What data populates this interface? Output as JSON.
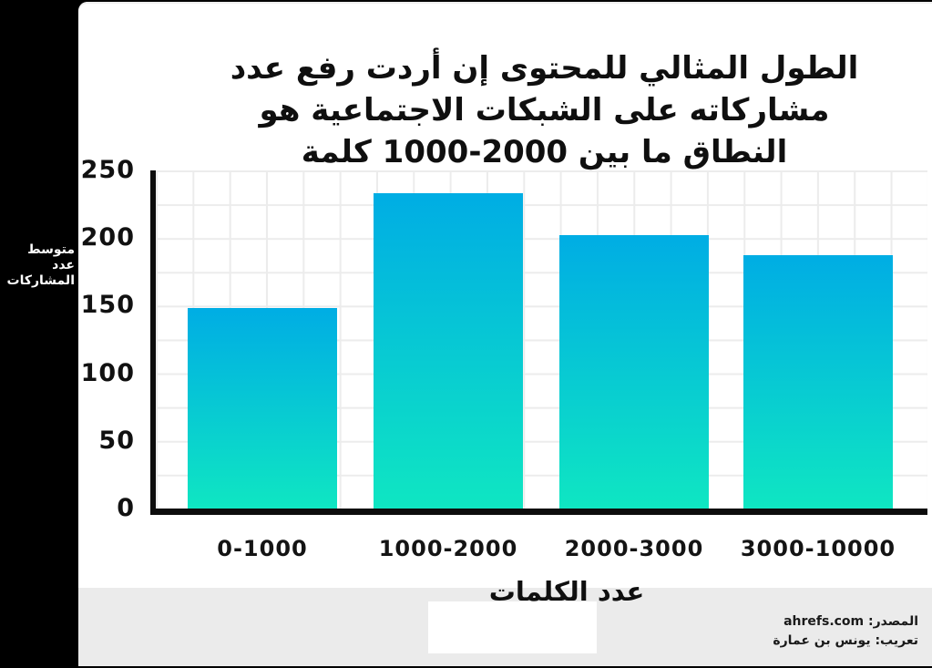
{
  "page": {
    "background_color": "#000000",
    "card_color": "#ffffff",
    "footer_band_color": "#ebebeb"
  },
  "title": {
    "lines": [
      "الطول المثالي للمحتوى إن أردت رفع عدد",
      "مشاركاته على الشبكات الاجتماعية هو",
      "النطاق ما بين 2000-1000 كلمة"
    ]
  },
  "chart_data": {
    "type": "bar",
    "categories": [
      "0-1000",
      "1000-2000",
      "2000-3000",
      "3000-10000"
    ],
    "values": [
      148,
      233,
      202,
      187
    ],
    "title": "الطول المثالي للمحتوى إن أردت رفع عدد مشاركاته على الشبكات الاجتماعية هو النطاق ما بين 1000-2000 كلمة",
    "xlabel": "عدد الكلمات",
    "ylabel": "متوسط عدد المشاركات",
    "ylim": [
      0,
      250
    ],
    "yticks": [
      250,
      200,
      150,
      100,
      50,
      0
    ],
    "grid": true,
    "legend": null,
    "bar_gradient_top": "#00ade4",
    "bar_gradient_bottom": "#0fe6c2",
    "axis_color": "#0d0d0d",
    "grid_color": "#ececec"
  },
  "y_axis": {
    "label_lines": [
      "متوسط",
      "عدد",
      "المشاركات"
    ]
  },
  "x_axis": {
    "title": "عدد الكلمات"
  },
  "footer": {
    "source_label": "المصدر: ahrefs.com",
    "translation_label": "تعريب: يونس بن عمارة"
  }
}
